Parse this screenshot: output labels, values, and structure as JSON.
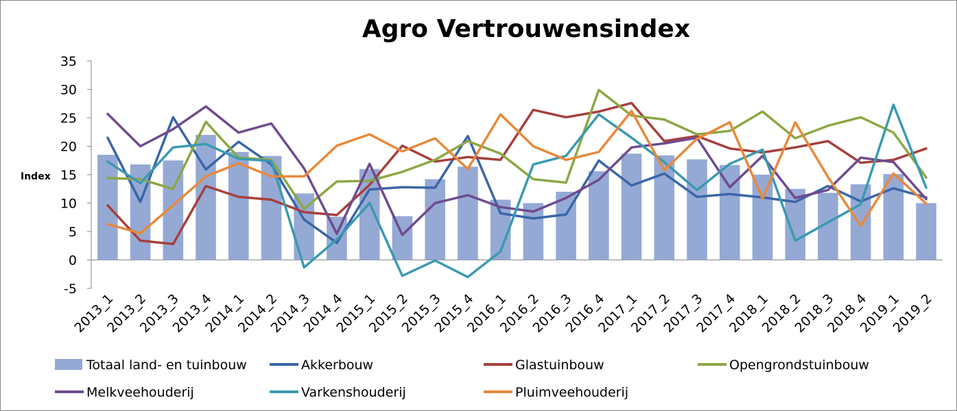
{
  "chart_data": {
    "type": "bar",
    "title": "Agro Vertrouwensindex",
    "ylabel": "Index",
    "xlabel": "",
    "ylim": [
      -5,
      35
    ],
    "yticks": [
      -5,
      0,
      5,
      10,
      15,
      20,
      25,
      30,
      35
    ],
    "grid": false,
    "legend_position": "bottom",
    "categories": [
      "2013_1",
      "2013_2",
      "2013_3",
      "2013_4",
      "2014_1",
      "2014_2",
      "2014_3",
      "2014_4",
      "2015_1",
      "2015_2",
      "2015_3",
      "2015_4",
      "2016_1",
      "2016_2",
      "2016_3",
      "2016_4",
      "2017_1",
      "2017_2",
      "2017_3",
      "2017_4",
      "2018_1",
      "2018_2",
      "2018_3",
      "2018_4",
      "2019_1",
      "2019_2"
    ],
    "series": [
      {
        "name": "Totaal land- en tuinbouw",
        "kind": "bar",
        "color": "#95a9d5",
        "values": [
          18.5,
          16.8,
          17.5,
          22.0,
          19.0,
          18.3,
          11.7,
          7.6,
          16.0,
          7.7,
          14.2,
          16.4,
          10.6,
          10.0,
          12.0,
          15.6,
          18.7,
          18.4,
          17.7,
          16.7,
          15.0,
          12.5,
          11.8,
          13.3,
          15.1,
          10.0
        ]
      },
      {
        "name": "Akkerbouw",
        "kind": "line",
        "color": "#3a66a7",
        "values": [
          21.5,
          10.2,
          25.1,
          15.9,
          20.8,
          16.8,
          7.1,
          3.0,
          12.4,
          12.8,
          12.7,
          21.8,
          8.2,
          7.3,
          8.0,
          17.5,
          13.1,
          15.2,
          11.1,
          11.6,
          11.0,
          10.2,
          13.0,
          10.3,
          12.6,
          11.0
        ]
      },
      {
        "name": "Glastuinbouw",
        "kind": "line",
        "color": "#a5403c",
        "values": [
          9.6,
          3.4,
          2.8,
          13.0,
          11.1,
          10.6,
          8.4,
          7.9,
          13.2,
          20.1,
          17.3,
          18.1,
          17.6,
          26.4,
          25.1,
          26.1,
          27.6,
          20.9,
          21.8,
          19.6,
          18.9,
          19.8,
          20.9,
          17.1,
          17.6,
          19.6
        ]
      },
      {
        "name": "Opengrondstuinbouw",
        "kind": "line",
        "color": "#8ca744",
        "values": [
          14.4,
          14.2,
          12.5,
          24.3,
          18.0,
          17.6,
          9.0,
          13.8,
          13.9,
          15.5,
          17.6,
          20.9,
          18.7,
          14.2,
          13.6,
          29.9,
          25.4,
          24.7,
          22.1,
          22.7,
          26.1,
          21.4,
          23.6,
          25.1,
          22.4,
          14.5
        ]
      },
      {
        "name": "Melkveehouderij",
        "kind": "line",
        "color": "#6f4b8e",
        "values": [
          25.7,
          20.0,
          23.0,
          27.0,
          22.4,
          24.0,
          16.1,
          4.6,
          16.9,
          4.4,
          10.0,
          11.4,
          9.3,
          8.5,
          10.9,
          14.1,
          19.8,
          20.5,
          21.5,
          12.8,
          18.3,
          10.9,
          12.3,
          18.0,
          17.2,
          10.7
        ]
      },
      {
        "name": "Varkenshouderij",
        "kind": "line",
        "color": "#3a9ab0",
        "values": [
          17.3,
          13.5,
          19.8,
          20.4,
          17.8,
          17.4,
          -1.3,
          3.6,
          10.0,
          -2.8,
          -0.1,
          -3.0,
          1.5,
          16.8,
          18.3,
          25.6,
          21.5,
          17.2,
          12.3,
          16.9,
          19.4,
          3.4,
          6.6,
          9.8,
          27.3,
          12.7
        ]
      },
      {
        "name": "Pluimveehouderij",
        "kind": "line",
        "color": "#e8893a",
        "values": [
          6.3,
          4.7,
          9.6,
          14.7,
          17.0,
          14.7,
          14.7,
          20.1,
          22.1,
          19.1,
          21.4,
          16.0,
          25.6,
          20.0,
          17.6,
          19.0,
          26.2,
          15.8,
          21.3,
          24.2,
          10.8,
          24.2,
          14.6,
          6.0,
          15.2,
          9.9
        ]
      }
    ]
  }
}
